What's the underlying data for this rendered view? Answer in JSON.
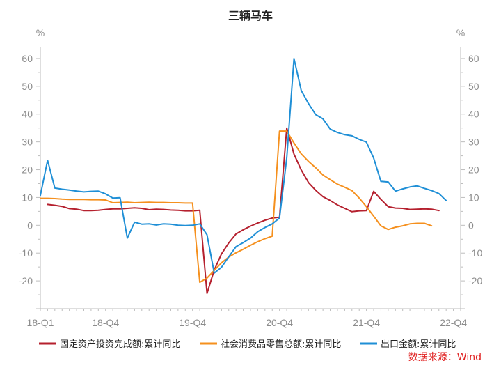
{
  "chart_data": {
    "type": "line",
    "title": "三辆马车",
    "y_unit_left": "%",
    "y_unit_right": "%",
    "ylim": [
      -30,
      64
    ],
    "yticks": [
      -20,
      -10,
      0,
      10,
      20,
      30,
      40,
      50,
      60
    ],
    "x_tick_labels": [
      {
        "label": "18-Q1",
        "index": 0
      },
      {
        "label": "18-Q4",
        "index": 9
      },
      {
        "label": "19-Q4",
        "index": 21
      },
      {
        "label": "20-Q4",
        "index": 33
      },
      {
        "label": "21-Q4",
        "index": 45
      },
      {
        "label": "22-Q4",
        "index": 57
      }
    ],
    "x_count": 59,
    "legend_position": "bottom",
    "source": "数据来源：Wind",
    "series": [
      {
        "name": "固定资产投资完成额:累计同比",
        "color": "#b5202e",
        "points": [
          [
            1,
            7.5
          ],
          [
            2,
            7.2
          ],
          [
            3,
            6.8
          ],
          [
            4,
            6
          ],
          [
            5,
            5.8
          ],
          [
            6,
            5.3
          ],
          [
            7,
            5.3
          ],
          [
            8,
            5.4
          ],
          [
            9,
            5.7
          ],
          [
            10,
            5.9
          ],
          [
            11,
            5.9
          ],
          [
            12,
            6.1
          ],
          [
            13,
            6.3
          ],
          [
            14,
            6.1
          ],
          [
            15,
            5.6
          ],
          [
            16,
            5.8
          ],
          [
            17,
            5.7
          ],
          [
            18,
            5.5
          ],
          [
            19,
            5.4
          ],
          [
            20,
            5.2
          ],
          [
            21,
            5.2
          ],
          [
            22,
            5.4
          ],
          [
            23,
            -24.5
          ],
          [
            24,
            -16.1
          ],
          [
            25,
            -10.3
          ],
          [
            26,
            -6.3
          ],
          [
            27,
            -3.1
          ],
          [
            28,
            -1.6
          ],
          [
            29,
            -0.3
          ],
          [
            30,
            0.8
          ],
          [
            31,
            1.8
          ],
          [
            32,
            2.6
          ],
          [
            33,
            2.9
          ],
          [
            34,
            35
          ],
          [
            35,
            25.6
          ],
          [
            36,
            19.9
          ],
          [
            37,
            15.4
          ],
          [
            38,
            12.6
          ],
          [
            39,
            10.3
          ],
          [
            40,
            8.9
          ],
          [
            41,
            7.3
          ],
          [
            42,
            6.1
          ],
          [
            43,
            4.9
          ],
          [
            44,
            5.2
          ],
          [
            45,
            5.3
          ],
          [
            46,
            12.2
          ],
          [
            47,
            9.3
          ],
          [
            48,
            6.7
          ],
          [
            49,
            6.2
          ],
          [
            50,
            6.1
          ],
          [
            51,
            5.7
          ],
          [
            52,
            5.8
          ],
          [
            53,
            5.9
          ],
          [
            54,
            5.8
          ],
          [
            55,
            5.3
          ]
        ]
      },
      {
        "name": "社会消费品零售总额:累计同比",
        "color": "#f5901e",
        "points": [
          [
            0,
            9.7
          ],
          [
            1,
            9.7
          ],
          [
            2,
            9.6
          ],
          [
            3,
            9.4
          ],
          [
            4,
            9.3
          ],
          [
            5,
            9.3
          ],
          [
            6,
            9.3
          ],
          [
            7,
            9.2
          ],
          [
            8,
            9.2
          ],
          [
            9,
            9.1
          ],
          [
            10,
            8.1
          ],
          [
            11,
            8.2
          ],
          [
            12,
            8.3
          ],
          [
            13,
            8.1
          ],
          [
            14,
            8.2
          ],
          [
            15,
            8.3
          ],
          [
            16,
            8.2
          ],
          [
            17,
            8.2
          ],
          [
            18,
            8.1
          ],
          [
            19,
            8.1
          ],
          [
            20,
            8
          ],
          [
            21,
            8
          ],
          [
            22,
            -20.5
          ],
          [
            23,
            -19
          ],
          [
            24,
            -16.2
          ],
          [
            25,
            -13.5
          ],
          [
            26,
            -11.4
          ],
          [
            27,
            -9.9
          ],
          [
            28,
            -8.6
          ],
          [
            29,
            -7.2
          ],
          [
            30,
            -5.9
          ],
          [
            31,
            -4.8
          ],
          [
            32,
            -3.9
          ],
          [
            33,
            33.9
          ],
          [
            34,
            33.9
          ],
          [
            35,
            29.6
          ],
          [
            36,
            25.7
          ],
          [
            37,
            23
          ],
          [
            38,
            20.7
          ],
          [
            39,
            18.1
          ],
          [
            40,
            16.4
          ],
          [
            41,
            14.8
          ],
          [
            42,
            13.7
          ],
          [
            43,
            12.5
          ],
          [
            44,
            9.8
          ],
          [
            45,
            6.7
          ],
          [
            46,
            3.3
          ],
          [
            47,
            -0.2
          ],
          [
            48,
            -1.5
          ],
          [
            49,
            -0.7
          ],
          [
            50,
            -0.2
          ],
          [
            51,
            0.5
          ],
          [
            52,
            0.7
          ],
          [
            53,
            0.7
          ],
          [
            54,
            -0.2
          ]
        ]
      },
      {
        "name": "出口金额:累计同比",
        "color": "#1f8fd6",
        "points": [
          [
            0,
            10.7
          ],
          [
            1,
            23.4
          ],
          [
            2,
            13.4
          ],
          [
            3,
            13
          ],
          [
            4,
            12.7
          ],
          [
            5,
            12.3
          ],
          [
            6,
            12
          ],
          [
            7,
            12.2
          ],
          [
            8,
            12.3
          ],
          [
            9,
            11.3
          ],
          [
            10,
            9.8
          ],
          [
            11,
            9.9
          ],
          [
            12,
            -4.6
          ],
          [
            13,
            1.1
          ],
          [
            14,
            0.4
          ],
          [
            15,
            0.5
          ],
          [
            16,
            0.1
          ],
          [
            17,
            0.5
          ],
          [
            18,
            0.4
          ],
          [
            19,
            0
          ],
          [
            20,
            -0.1
          ],
          [
            21,
            0
          ],
          [
            22,
            0.5
          ],
          [
            23,
            -3.4
          ],
          [
            24,
            -17.2
          ],
          [
            25,
            -15.1
          ],
          [
            26,
            -11.3
          ],
          [
            27,
            -7.7
          ],
          [
            28,
            -6.2
          ],
          [
            29,
            -4.6
          ],
          [
            30,
            -2.3
          ],
          [
            31,
            -0.8
          ],
          [
            32,
            0.5
          ],
          [
            33,
            2.6
          ],
          [
            34,
            24.2
          ],
          [
            35,
            60
          ],
          [
            36,
            48.5
          ],
          [
            37,
            43.8
          ],
          [
            38,
            39.8
          ],
          [
            39,
            38.3
          ],
          [
            40,
            34.6
          ],
          [
            41,
            33.4
          ],
          [
            42,
            32.6
          ],
          [
            43,
            32.2
          ],
          [
            44,
            30.9
          ],
          [
            45,
            29.9
          ],
          [
            46,
            24.2
          ],
          [
            47,
            15.8
          ],
          [
            48,
            15.6
          ],
          [
            49,
            12.3
          ],
          [
            50,
            13.1
          ],
          [
            51,
            13.8
          ],
          [
            52,
            14.2
          ],
          [
            53,
            13.3
          ],
          [
            54,
            12.5
          ],
          [
            55,
            11.4
          ],
          [
            56,
            8.9
          ]
        ]
      }
    ]
  }
}
